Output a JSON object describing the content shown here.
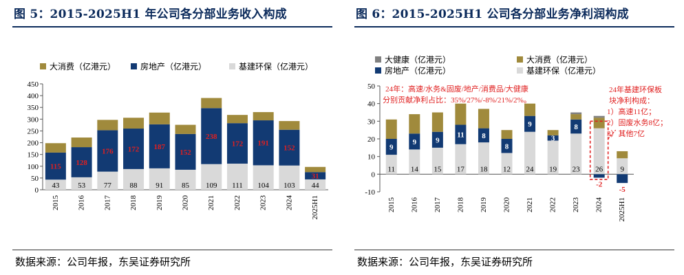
{
  "left": {
    "title": "图 5：2015-2025H1 年公司各分部业务收入构成",
    "source": "数据来源：公司年报，东吴证券研究所",
    "chart_data": {
      "type": "bar",
      "stacked": true,
      "categories": [
        "2015",
        "2016",
        "2017",
        "2018",
        "2019",
        "2020",
        "2021",
        "2022",
        "2023",
        "2024",
        "2025H1"
      ],
      "series": [
        {
          "name": "基建环保（亿港元）",
          "color": "#d9d9d9",
          "values": [
            43,
            53,
            77,
            88,
            91,
            85,
            109,
            111,
            104,
            103,
            44
          ],
          "labels": [
            "43",
            "53",
            "77",
            "88",
            "91",
            "85",
            "109",
            "111",
            "104",
            "103",
            "44"
          ]
        },
        {
          "name": "房地产（亿港元）",
          "color": "#123a73",
          "values": [
            115,
            128,
            176,
            172,
            187,
            152,
            238,
            172,
            191,
            152,
            31
          ],
          "labels": [
            "115",
            "128",
            "176",
            "172",
            "187",
            "152",
            "238",
            "172",
            "191",
            "152",
            "31"
          ]
        },
        {
          "name": "大消费（亿港元）",
          "color": "#a08a3c",
          "values": [
            40,
            41,
            44,
            46,
            50,
            39,
            43,
            35,
            35,
            37,
            22
          ],
          "labels": [
            "",
            "",
            "",
            "",
            "",
            "",
            "",
            "",
            "",
            "",
            ""
          ]
        }
      ],
      "ylim": [
        0,
        450
      ],
      "yticks": [
        0,
        50,
        100,
        150,
        200,
        250,
        300,
        350,
        400,
        450
      ],
      "legend_order": [
        2,
        1,
        0
      ],
      "legend_labels": [
        "大消费（亿港元）",
        "房地产（亿港元）",
        "基建环保（亿港元）"
      ]
    }
  },
  "right": {
    "title": "图 6：2015-2025H1 公司各分部业务净利润构成",
    "source": "数据来源：公司年报，东吴证券研究所",
    "annotation_1_line1": "24年：高速/水务&固废/地产/消费品/大健康",
    "annotation_1_line2": "分别贡献净利占比：35%/27%/-8%/21%/2%。",
    "annotation_2_lines": [
      "24年基建环保板",
      "块净利构成：",
      "1）高速11亿；",
      "2）固废水务8亿；",
      "3）其他7亿"
    ],
    "chart_data": {
      "type": "bar",
      "stacked": true,
      "categories": [
        "2015",
        "2016",
        "2017",
        "2018",
        "2019",
        "2020",
        "2021",
        "2022",
        "2023",
        "2024",
        "2025H1"
      ],
      "series": [
        {
          "name": "基建环保（亿港元）",
          "color": "#d9d9d9",
          "values": [
            11,
            14,
            15,
            17,
            18,
            12,
            24,
            19,
            23,
            26,
            9
          ],
          "labels": [
            "11",
            "14",
            "15",
            "17",
            "18",
            "12",
            "24",
            "19",
            "23",
            "26",
            "9"
          ]
        },
        {
          "name": "房地产（亿港元）",
          "color": "#123a73",
          "values": [
            9,
            9,
            9,
            11,
            8,
            8,
            9,
            3,
            8,
            -2,
            -5
          ],
          "labels": [
            "9",
            "9",
            "9",
            "11",
            "8",
            "8",
            "9",
            "3",
            "8",
            "-2",
            "-5"
          ]
        },
        {
          "name": "大消费（亿港元）",
          "color": "#a08a3c",
          "values": [
            11,
            11,
            11,
            12,
            11,
            5,
            7,
            3,
            3,
            6,
            4
          ],
          "labels": [
            "",
            "",
            "",
            "",
            "",
            "",
            "",
            "",
            "",
            "",
            ""
          ]
        },
        {
          "name": "大健康（亿港元）",
          "color": "#808080",
          "values": [
            0,
            0,
            0,
            0,
            0,
            0,
            0,
            0,
            1,
            1,
            0
          ],
          "labels": [
            "",
            "",
            "",
            "",
            "",
            "",
            "",
            "",
            "",
            "",
            ""
          ]
        }
      ],
      "ylim": [
        -10,
        50
      ],
      "yticks": [
        -10,
        0,
        10,
        20,
        30,
        40,
        50
      ],
      "legend_labels": [
        "大健康（亿港元）",
        "大消费（亿港元）",
        "房地产（亿港元）",
        "基建环保（亿港元）"
      ]
    }
  }
}
